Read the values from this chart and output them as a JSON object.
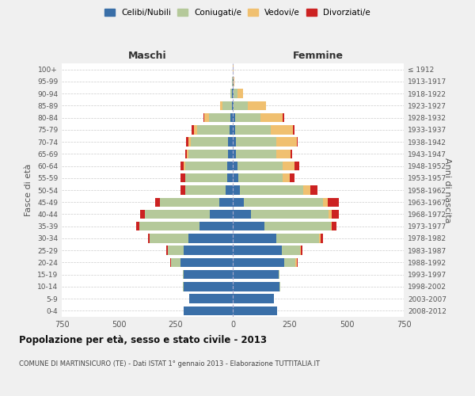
{
  "age_groups": [
    "0-4",
    "5-9",
    "10-14",
    "15-19",
    "20-24",
    "25-29",
    "30-34",
    "35-39",
    "40-44",
    "45-49",
    "50-54",
    "55-59",
    "60-64",
    "65-69",
    "70-74",
    "75-79",
    "80-84",
    "85-89",
    "90-94",
    "95-99",
    "100+"
  ],
  "birth_years": [
    "2008-2012",
    "2003-2007",
    "1998-2002",
    "1993-1997",
    "1988-1992",
    "1983-1987",
    "1978-1982",
    "1973-1977",
    "1968-1972",
    "1963-1967",
    "1958-1962",
    "1953-1957",
    "1948-1952",
    "1943-1947",
    "1938-1942",
    "1933-1937",
    "1928-1932",
    "1923-1927",
    "1918-1922",
    "1913-1917",
    "≤ 1912"
  ],
  "maschi": {
    "celibi": [
      215,
      190,
      215,
      215,
      230,
      215,
      195,
      145,
      100,
      60,
      30,
      25,
      25,
      20,
      20,
      15,
      10,
      5,
      2,
      1,
      0
    ],
    "coniugati": [
      0,
      0,
      5,
      5,
      40,
      70,
      170,
      265,
      285,
      260,
      180,
      185,
      185,
      175,
      165,
      140,
      95,
      40,
      8,
      2,
      1
    ],
    "vedovi": [
      0,
      0,
      0,
      0,
      0,
      0,
      0,
      0,
      0,
      0,
      0,
      0,
      5,
      5,
      10,
      15,
      20,
      10,
      2,
      0,
      0
    ],
    "divorziati": [
      0,
      0,
      0,
      0,
      5,
      5,
      5,
      15,
      20,
      20,
      20,
      20,
      15,
      10,
      10,
      10,
      5,
      0,
      0,
      0,
      0
    ]
  },
  "femmine": {
    "nubili": [
      195,
      180,
      205,
      200,
      225,
      215,
      190,
      140,
      80,
      50,
      30,
      25,
      20,
      15,
      15,
      10,
      10,
      5,
      5,
      2,
      0
    ],
    "coniugate": [
      0,
      0,
      5,
      5,
      50,
      80,
      190,
      290,
      340,
      345,
      280,
      195,
      200,
      175,
      175,
      155,
      110,
      60,
      15,
      3,
      1
    ],
    "vedove": [
      0,
      0,
      0,
      0,
      5,
      5,
      5,
      5,
      15,
      20,
      30,
      30,
      50,
      65,
      90,
      100,
      100,
      80,
      25,
      3,
      1
    ],
    "divorziate": [
      0,
      0,
      0,
      0,
      5,
      5,
      10,
      20,
      30,
      50,
      30,
      20,
      20,
      5,
      5,
      5,
      5,
      0,
      0,
      0,
      0
    ]
  },
  "colors": {
    "celibi": "#3a6fa8",
    "coniugati": "#b5c99a",
    "vedovi": "#f0c070",
    "divorziati": "#cc2222"
  },
  "legend_labels": [
    "Celibi/Nubili",
    "Coniugati/e",
    "Vedovi/e",
    "Divorziati/e"
  ],
  "title": "Popolazione per età, sesso e stato civile - 2013",
  "subtitle": "COMUNE DI MARTINSICURO (TE) - Dati ISTAT 1° gennaio 2013 - Elaborazione TUTTITALIA.IT",
  "xlabel_left": "Maschi",
  "xlabel_right": "Femmine",
  "ylabel_left": "Fasce di età",
  "ylabel_right": "Anni di nascita",
  "xlim": 750,
  "bg_color": "#f0f0f0",
  "plot_bg": "#ffffff",
  "grid_color": "#cccccc"
}
